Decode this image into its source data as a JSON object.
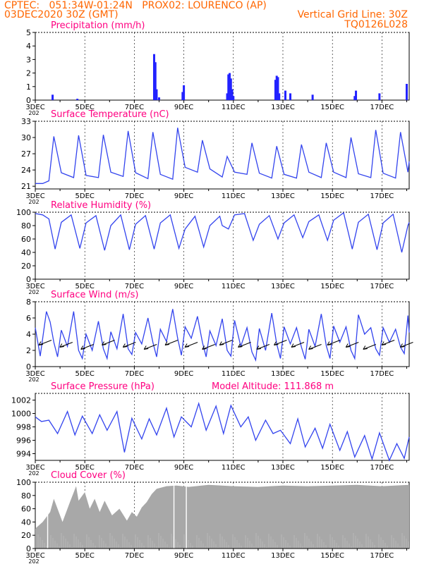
{
  "header": {
    "line1": "CPTEC:   051:34W-01:24N   PROX02: LOURENCO (AP)",
    "line2_left": "03DEC2020 30Z (GMT)",
    "line2_right": "Vertical Grid Line: 30Z",
    "line3_right": "TQ0126L028"
  },
  "x_ticks": [
    "3DEC",
    "5DEC",
    "7DEC",
    "9DEC",
    "11DEC",
    "13DEC",
    "15DEC",
    "17DEC"
  ],
  "x_sublabel": "202",
  "colors": {
    "line": "#3344ee",
    "bar": "#2222ff",
    "title": "#ff0080",
    "header": "#ff6600",
    "cloud": "#a8a8a8"
  },
  "chart_data": [
    {
      "type": "bar",
      "title": "Precipitation (mm/h)",
      "ylim": [
        0,
        5
      ],
      "yticks": [
        0,
        1,
        2,
        3,
        4,
        5
      ],
      "xlim": [
        3,
        18.1
      ],
      "series": [
        {
          "x": [
            3.7,
            4.7,
            7.8,
            7.85,
            7.9,
            8.0,
            8.95,
            9.0,
            10.75,
            10.8,
            10.85,
            10.9,
            10.95,
            11.0,
            12.7,
            12.75,
            12.8,
            12.85,
            13.1,
            13.3,
            14.2,
            15.9,
            15.95,
            16.9,
            18.0
          ],
          "values": [
            0.4,
            0.1,
            3.4,
            2.8,
            0.8,
            0.2,
            0.6,
            1.1,
            0.5,
            1.9,
            2.0,
            1.6,
            0.8,
            0.3,
            1.5,
            1.8,
            1.7,
            0.5,
            0.7,
            0.5,
            0.4,
            0.3,
            0.7,
            0.5,
            1.2
          ]
        }
      ]
    },
    {
      "type": "line",
      "title": "Surface Temperature (nC)",
      "ylim": [
        20.5,
        33
      ],
      "yticks": [
        21,
        24,
        27,
        30,
        33
      ],
      "xlim": [
        3,
        18.1
      ],
      "series": [
        {
          "x": [
            3.0,
            3.3,
            3.55,
            3.75,
            4.05,
            4.55,
            4.75,
            5.05,
            5.55,
            5.75,
            6.05,
            6.55,
            6.75,
            7.05,
            7.55,
            7.75,
            8.05,
            8.55,
            8.75,
            9.05,
            9.55,
            9.75,
            10.05,
            10.55,
            10.75,
            11.05,
            11.55,
            11.75,
            12.05,
            12.55,
            12.75,
            13.05,
            13.55,
            13.75,
            14.05,
            14.55,
            14.75,
            15.05,
            15.55,
            15.75,
            16.05,
            16.55,
            16.75,
            17.05,
            17.55,
            17.75,
            18.05,
            18.1
          ],
          "values": [
            21.5,
            21.5,
            22.0,
            30.2,
            23.5,
            22.6,
            30.4,
            23.0,
            22.6,
            30.5,
            23.6,
            22.8,
            31.2,
            23.5,
            22.4,
            31.0,
            23.2,
            22.3,
            31.8,
            24.5,
            23.6,
            29.5,
            24.2,
            22.7,
            26.5,
            23.6,
            23.2,
            29.0,
            23.4,
            22.5,
            28.4,
            23.2,
            22.5,
            28.7,
            23.6,
            22.6,
            29.0,
            23.6,
            22.6,
            30.0,
            23.3,
            22.6,
            31.4,
            23.4,
            22.5,
            31.0,
            23.6,
            25.6
          ]
        }
      ]
    },
    {
      "type": "line",
      "title": "Relative Humidity (%)",
      "ylim": [
        0,
        100
      ],
      "yticks": [
        0,
        20,
        40,
        60,
        80,
        100
      ],
      "xlim": [
        3,
        18.1
      ],
      "series": [
        {
          "x": [
            3.0,
            3.3,
            3.55,
            3.8,
            4.05,
            4.45,
            4.8,
            5.05,
            5.45,
            5.8,
            6.05,
            6.45,
            6.8,
            7.05,
            7.45,
            7.8,
            8.05,
            8.45,
            8.8,
            9.05,
            9.45,
            9.8,
            10.05,
            10.45,
            10.55,
            10.8,
            11.05,
            11.45,
            11.8,
            12.05,
            12.45,
            12.8,
            13.05,
            13.45,
            13.8,
            14.05,
            14.45,
            14.8,
            15.05,
            15.45,
            15.8,
            16.05,
            16.45,
            16.8,
            17.05,
            17.45,
            17.8,
            18.05,
            18.1
          ],
          "values": [
            98,
            96,
            90,
            45,
            85,
            96,
            46,
            84,
            95,
            43,
            80,
            96,
            44,
            82,
            95,
            45,
            84,
            96,
            46,
            75,
            94,
            48,
            80,
            94,
            80,
            75,
            96,
            98,
            58,
            82,
            95,
            60,
            84,
            96,
            62,
            86,
            96,
            58,
            88,
            99,
            45,
            85,
            97,
            44,
            84,
            97,
            40,
            80,
            85
          ]
        }
      ]
    },
    {
      "type": "line",
      "title": "Surface Wind (m/s)",
      "ylim": [
        0,
        8
      ],
      "yticks": [
        0,
        2,
        4,
        6,
        8
      ],
      "xlim": [
        3,
        18.1
      ],
      "series": [
        {
          "x": [
            3.0,
            3.2,
            3.45,
            3.6,
            3.75,
            3.9,
            4.05,
            4.3,
            4.55,
            4.75,
            4.9,
            5.05,
            5.3,
            5.55,
            5.75,
            5.9,
            6.05,
            6.3,
            6.55,
            6.75,
            6.9,
            7.05,
            7.3,
            7.55,
            7.75,
            7.9,
            8.05,
            8.3,
            8.55,
            8.75,
            8.9,
            9.05,
            9.3,
            9.55,
            9.75,
            9.9,
            10.05,
            10.3,
            10.55,
            10.75,
            10.9,
            11.05,
            11.3,
            11.55,
            11.75,
            11.9,
            12.05,
            12.3,
            12.55,
            12.75,
            12.9,
            13.05,
            13.3,
            13.55,
            13.75,
            13.9,
            14.05,
            14.3,
            14.55,
            14.75,
            14.9,
            15.05,
            15.3,
            15.55,
            15.75,
            15.9,
            16.05,
            16.3,
            16.55,
            16.75,
            16.9,
            17.05,
            17.3,
            17.55,
            17.75,
            17.9,
            18.05,
            18.1
          ],
          "values": [
            4.8,
            1.3,
            6.8,
            5.5,
            3.0,
            1.2,
            4.5,
            2.5,
            6.8,
            2.0,
            1.0,
            4.0,
            2.0,
            5.6,
            2.2,
            1.0,
            4.3,
            2.2,
            6.5,
            2.2,
            1.5,
            4.2,
            2.8,
            6.0,
            3.0,
            1.2,
            4.6,
            3.1,
            7.1,
            3.5,
            1.4,
            4.9,
            3.5,
            6.2,
            3.0,
            1.2,
            4.4,
            2.6,
            5.9,
            2.0,
            1.3,
            5.7,
            2.5,
            4.8,
            1.8,
            0.8,
            4.7,
            2.0,
            6.6,
            2.8,
            1.0,
            4.9,
            2.8,
            4.8,
            2.4,
            0.9,
            4.6,
            2.5,
            6.5,
            2.6,
            1.0,
            5.0,
            3.0,
            4.9,
            2.0,
            1.0,
            6.4,
            4.0,
            4.8,
            2.2,
            1.4,
            4.8,
            3.0,
            4.6,
            2.4,
            1.6,
            6.3,
            4.2
          ]
        }
      ]
    },
    {
      "type": "line",
      "title": "Surface Pressure (hPa)",
      "annotation": "Model Altitude: 111.868  m",
      "ylim": [
        993,
        1003
      ],
      "yticks": [
        994,
        996,
        998,
        1000,
        1002
      ],
      "xlim": [
        3,
        18.1
      ],
      "series": [
        {
          "x": [
            3.0,
            3.25,
            3.55,
            3.9,
            4.3,
            4.6,
            4.9,
            5.3,
            5.6,
            5.9,
            6.3,
            6.6,
            6.9,
            7.3,
            7.6,
            7.9,
            8.3,
            8.6,
            8.9,
            9.3,
            9.6,
            9.9,
            10.3,
            10.6,
            10.9,
            11.3,
            11.6,
            11.9,
            12.3,
            12.6,
            12.9,
            13.3,
            13.6,
            13.9,
            14.3,
            14.6,
            14.9,
            15.3,
            15.6,
            15.9,
            16.3,
            16.6,
            16.9,
            17.3,
            17.6,
            17.9,
            18.1
          ],
          "values": [
            999.5,
            998.8,
            999.0,
            997.0,
            1000.3,
            996.8,
            999.6,
            997.0,
            999.8,
            997.5,
            1000.3,
            994.2,
            999.3,
            996.2,
            999.2,
            996.8,
            1000.8,
            996.5,
            999.5,
            998.0,
            1001.5,
            997.5,
            1001.1,
            997.0,
            1001.2,
            998.0,
            999.5,
            996.0,
            999.0,
            997.0,
            997.5,
            995.5,
            999.2,
            995.0,
            997.8,
            994.8,
            998.4,
            994.5,
            997.3,
            993.5,
            996.7,
            993.2,
            997.1,
            993.0,
            995.5,
            993.3,
            996.5
          ]
        }
      ]
    },
    {
      "type": "bar",
      "title": "Cloud Cover (%)",
      "ylim": [
        0,
        100
      ],
      "yticks": [
        0,
        20,
        40,
        60,
        80,
        100
      ],
      "xlim": [
        3,
        18.1
      ],
      "envelope": {
        "x": [
          3.0,
          3.3,
          3.6,
          3.75,
          4.1,
          4.4,
          4.65,
          4.75,
          5.0,
          5.2,
          5.4,
          5.6,
          5.8,
          6.1,
          6.4,
          6.7,
          6.9,
          7.1,
          7.3,
          7.5,
          7.7,
          7.9,
          8.3,
          8.7,
          9.2,
          10.0,
          11.0,
          12.0,
          13.0,
          14.0,
          15.0,
          16.0,
          17.0,
          18.1
        ],
        "values": [
          30,
          40,
          55,
          75,
          40,
          70,
          94,
          72,
          85,
          60,
          75,
          55,
          72,
          50,
          60,
          42,
          55,
          48,
          62,
          70,
          82,
          90,
          94,
          95,
          93,
          96,
          94,
          93,
          95,
          94,
          95,
          96,
          94,
          96
        ]
      }
    }
  ]
}
